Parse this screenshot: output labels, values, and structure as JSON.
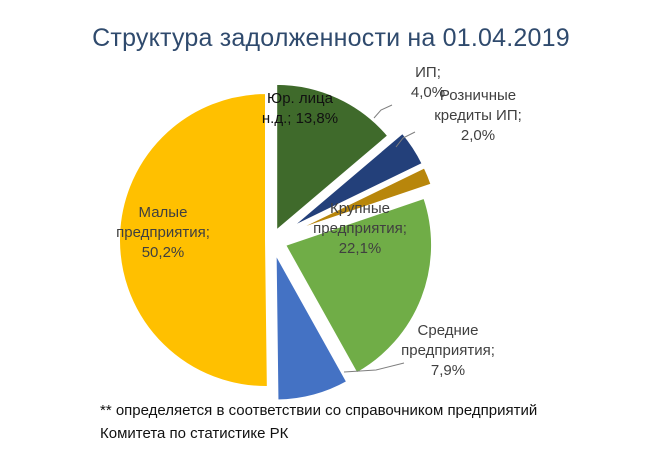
{
  "chart_data": {
    "type": "pie",
    "title": "Структура задолженности на 01.04.2019",
    "series": [
      {
        "name": "Юр. лица н.д.",
        "percent_label": "13,8%",
        "value": 13.8,
        "color": "#3f6a2b",
        "label_lines": [
          "Юр. лица",
          "н.д.; 13,8%"
        ],
        "label_color": "#111111"
      },
      {
        "name": "ИП",
        "percent_label": "4,0%",
        "value": 4.0,
        "color": "#23407a",
        "label_lines": [
          "ИП;",
          "4,0%"
        ],
        "label_color": "#404040"
      },
      {
        "name": "Розничные кредиты ИП",
        "percent_label": "2,0%",
        "value": 2.0,
        "color": "#b8860b",
        "label_lines": [
          "Розничные",
          "кредиты ИП;",
          "2,0%"
        ],
        "label_color": "#404040"
      },
      {
        "name": "Крупные предприятия",
        "percent_label": "22,1%",
        "value": 22.1,
        "color": "#70ad47",
        "label_lines": [
          "Крупные",
          "предприятия;",
          "22,1%"
        ],
        "label_color": "#404040"
      },
      {
        "name": "Средние предприятия",
        "percent_label": "7,9%",
        "value": 7.9,
        "color": "#4472c4",
        "label_lines": [
          "Средние",
          "предприятия;",
          "7,9%"
        ],
        "label_color": "#404040"
      },
      {
        "name": "Малые предприятия",
        "percent_label": "50,2%",
        "value": 50.2,
        "color": "#ffc000",
        "label_lines": [
          "Малые",
          "предприятия;",
          "50,2%"
        ],
        "label_color": "#404040"
      }
    ]
  },
  "footnote": {
    "line1": "** определяется в соответствии со справочником предприятий",
    "line2": "Комитета по статистике РК"
  }
}
